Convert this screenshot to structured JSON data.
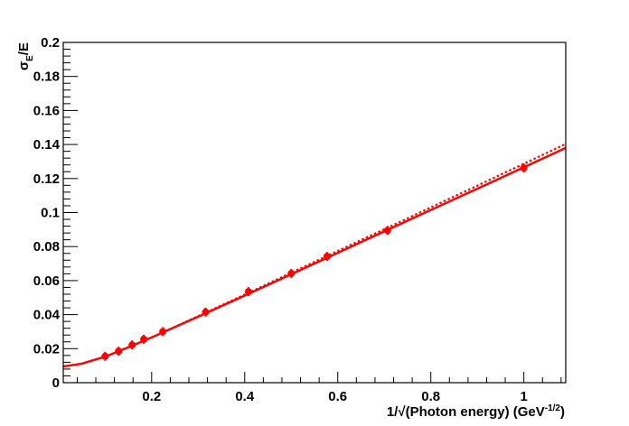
{
  "chart_data": {
    "type": "scatter",
    "title": "",
    "xlabel": {
      "prefix": "1/√(Photon energy) (GeV",
      "sup": "-1/2",
      "suffix": ")"
    },
    "ylabel": {
      "main": "σ",
      "sub": "E",
      "rest": "/E"
    },
    "xlim": [
      0.01,
      1.09
    ],
    "ylim": [
      0,
      0.2
    ],
    "x_ticks": [
      {
        "v": 0.2,
        "label": "0.2"
      },
      {
        "v": 0.4,
        "label": "0.4"
      },
      {
        "v": 0.6,
        "label": "0.6"
      },
      {
        "v": 0.8,
        "label": "0.8"
      },
      {
        "v": 1.0,
        "label": "1"
      }
    ],
    "y_ticks": [
      {
        "v": 0,
        "label": "0"
      },
      {
        "v": 0.02,
        "label": "0.02"
      },
      {
        "v": 0.04,
        "label": "0.04"
      },
      {
        "v": 0.06,
        "label": "0.06"
      },
      {
        "v": 0.08,
        "label": "0.08"
      },
      {
        "v": 0.1,
        "label": "0.1"
      },
      {
        "v": 0.12,
        "label": "0.12"
      },
      {
        "v": 0.14,
        "label": "0.14"
      },
      {
        "v": 0.16,
        "label": "0.16"
      },
      {
        "v": 0.18,
        "label": "0.18"
      },
      {
        "v": 0.2,
        "label": "0.2"
      }
    ],
    "grid": false,
    "legend": "none",
    "series": [
      {
        "style": "markers",
        "color": "#ff0000",
        "points": [
          {
            "x": 0.1,
            "y": 0.0155
          },
          {
            "x": 0.129,
            "y": 0.0185
          },
          {
            "x": 0.158,
            "y": 0.0222
          },
          {
            "x": 0.183,
            "y": 0.0255
          },
          {
            "x": 0.224,
            "y": 0.03
          },
          {
            "x": 0.316,
            "y": 0.0415
          },
          {
            "x": 0.408,
            "y": 0.0535
          },
          {
            "x": 0.5,
            "y": 0.0642
          },
          {
            "x": 0.577,
            "y": 0.0742
          },
          {
            "x": 0.707,
            "y": 0.0895
          },
          {
            "x": 1.0,
            "y": 0.1262
          }
        ]
      },
      {
        "style": "solid",
        "color": "#ff0000",
        "x": [
          0.01,
          0.05,
          0.1,
          0.15,
          0.2,
          0.3,
          0.4,
          0.5,
          0.6,
          0.7,
          0.8,
          0.9,
          1.0,
          1.09
        ],
        "y": [
          0.0095,
          0.0112,
          0.0153,
          0.0208,
          0.0266,
          0.0388,
          0.0512,
          0.0637,
          0.0763,
          0.0889,
          0.1015,
          0.114,
          0.1266,
          0.138
        ]
      },
      {
        "style": "dotted",
        "color": "#ff0000",
        "x": [
          0.01,
          0.05,
          0.1,
          0.15,
          0.2,
          0.3,
          0.4,
          0.5,
          0.6,
          0.7,
          0.8,
          0.9,
          1.0,
          1.09
        ],
        "y": [
          0.0095,
          0.0112,
          0.0153,
          0.0208,
          0.0266,
          0.0391,
          0.0518,
          0.0646,
          0.0774,
          0.0902,
          0.103,
          0.1158,
          0.1287,
          0.1403
        ]
      }
    ]
  }
}
